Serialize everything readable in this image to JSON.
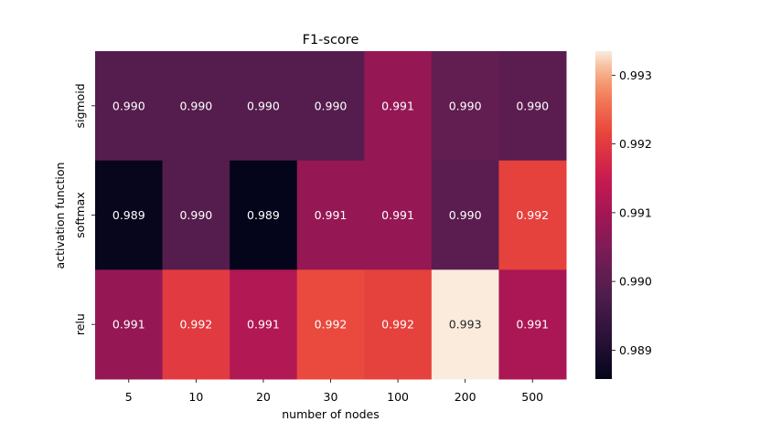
{
  "chart_data": {
    "type": "heatmap",
    "title": "F1-score",
    "xlabel": "number of nodes",
    "ylabel": "activation function",
    "x_categories": [
      "5",
      "10",
      "20",
      "30",
      "100",
      "200",
      "500"
    ],
    "y_categories": [
      "sigmoid",
      "softmax",
      "relu"
    ],
    "values": [
      [
        0.9899,
        0.9899,
        0.9899,
        0.9899,
        0.9908,
        0.9901,
        0.99
      ],
      [
        0.98865,
        0.9899,
        0.9886,
        0.9908,
        0.9908,
        0.99,
        0.9921
      ],
      [
        0.9908,
        0.992,
        0.9912,
        0.9922,
        0.9921,
        0.99335,
        0.9911
      ]
    ],
    "cell_labels": [
      [
        "0.990",
        "0.990",
        "0.990",
        "0.990",
        "0.991",
        "0.990",
        "0.990"
      ],
      [
        "0.989",
        "0.990",
        "0.989",
        "0.991",
        "0.991",
        "0.990",
        "0.992"
      ],
      [
        "0.991",
        "0.992",
        "0.991",
        "0.992",
        "0.992",
        "0.993",
        "0.991"
      ]
    ],
    "colorbar": {
      "range": [
        0.98858,
        0.99335
      ],
      "ticks": [
        0.989,
        0.99,
        0.991,
        0.992,
        0.993
      ],
      "tick_labels": [
        "0.989",
        "0.990",
        "0.991",
        "0.992",
        "0.993"
      ],
      "colormap": "rocket"
    }
  }
}
